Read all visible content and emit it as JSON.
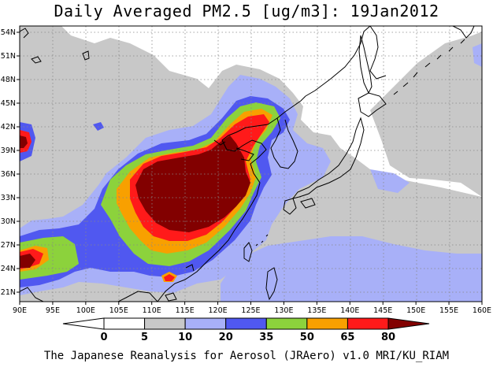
{
  "title": "Daily Averaged PM2.5 [ug/m3]: 19Jan2012",
  "credit": "The Japanese Reanalysis for Aerosol (JRAero) v1.0 MRI/KU_RIAM",
  "lon_ticks": [
    "90E",
    "95E",
    "100E",
    "105E",
    "110E",
    "115E",
    "120E",
    "125E",
    "130E",
    "135E",
    "140E",
    "145E",
    "150E",
    "155E",
    "160E"
  ],
  "lat_ticks": [
    "54N",
    "51N",
    "48N",
    "45N",
    "42N",
    "39N",
    "36N",
    "33N",
    "30N",
    "27N",
    "24N",
    "21N"
  ],
  "colorbar": {
    "levels": [
      "0",
      "5",
      "10",
      "20",
      "35",
      "50",
      "65",
      "80"
    ],
    "colors": [
      "#ffffff",
      "#ffffff",
      "#c8c8c8",
      "#a8b0f8",
      "#5058f0",
      "#8cd23c",
      "#f8a000",
      "#ff1a1a",
      "#820000"
    ]
  },
  "palette": {
    "land_bg": "#ffffff",
    "coast": "#000000",
    "gray": "#c8c8c8",
    "lightblue": "#a8b0f8",
    "blue": "#5058f0",
    "green": "#8cd23c",
    "orange": "#f8a000",
    "red": "#ff1a1a",
    "darkred": "#820000"
  }
}
